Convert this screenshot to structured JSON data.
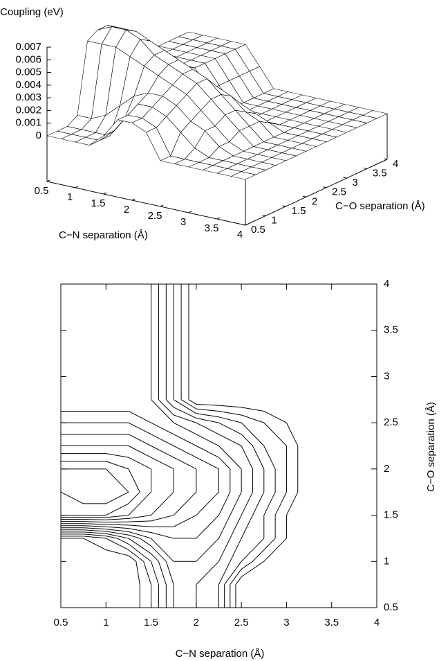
{
  "chart_data": [
    {
      "type": "surface",
      "zlabel": "Coupling (eV)",
      "xlabel": "C−N separation (Å)",
      "ylabel": "C−O separation (Å)",
      "x": [
        0.5,
        0.75,
        1,
        1.25,
        1.5,
        1.75,
        2,
        2.25,
        2.5,
        2.75,
        3,
        3.25,
        3.5,
        3.75,
        4
      ],
      "y": [
        0.5,
        0.75,
        1,
        1.25,
        1.5,
        1.75,
        2,
        2.25,
        2.5,
        2.75,
        3,
        3.25,
        3.5,
        3.75,
        4
      ],
      "z": [
        [
          0,
          0,
          0,
          0,
          0.001,
          0.0025,
          0.0025,
          0.002,
          0,
          0,
          0,
          0,
          0,
          0,
          0
        ],
        [
          0,
          0,
          0,
          0,
          0.001,
          0.0025,
          0.0025,
          0.002,
          0,
          0,
          0,
          0,
          0,
          0,
          0
        ],
        [
          0,
          0,
          0,
          0,
          0.0015,
          0.003,
          0.003,
          0.0025,
          0.0015,
          0.0005,
          0,
          0,
          0,
          0,
          0
        ],
        [
          0.0005,
          0.0005,
          0.001,
          0.002,
          0.003,
          0.0035,
          0.0035,
          0.003,
          0.002,
          0.0015,
          0.0005,
          0,
          0,
          0,
          0
        ],
        [
          0.006,
          0.006,
          0.006,
          0.0055,
          0.005,
          0.0045,
          0.004,
          0.0035,
          0.0025,
          0.0015,
          0.0005,
          0,
          0,
          0,
          0
        ],
        [
          0.0065,
          0.007,
          0.007,
          0.0065,
          0.0055,
          0.005,
          0.0045,
          0.004,
          0.003,
          0.002,
          0.001,
          0,
          0,
          0,
          0
        ],
        [
          0.0065,
          0.0065,
          0.0065,
          0.006,
          0.0055,
          0.005,
          0.0045,
          0.004,
          0.003,
          0.002,
          0.001,
          0,
          0,
          0,
          0
        ],
        [
          0.005,
          0.005,
          0.005,
          0.005,
          0.0045,
          0.004,
          0.0035,
          0.003,
          0.0025,
          0.0015,
          0.001,
          0,
          0,
          0,
          0
        ],
        [
          0.004,
          0.004,
          0.004,
          0.004,
          0.0035,
          0.003,
          0.0025,
          0.002,
          0.0015,
          0.001,
          0.0005,
          0,
          0,
          0,
          0
        ],
        [
          0.003,
          0.003,
          0.003,
          0.003,
          0.003,
          0.0015,
          0,
          0,
          0,
          0,
          0,
          0,
          0,
          0,
          0
        ],
        [
          0.003,
          0.003,
          0.003,
          0.003,
          0.003,
          0.0015,
          0,
          0,
          0,
          0,
          0,
          0,
          0,
          0,
          0
        ],
        [
          0.003,
          0.003,
          0.003,
          0.003,
          0.003,
          0.0015,
          0,
          0,
          0,
          0,
          0,
          0,
          0,
          0,
          0
        ],
        [
          0.003,
          0.003,
          0.003,
          0.003,
          0.003,
          0.0015,
          0,
          0,
          0,
          0,
          0,
          0,
          0,
          0,
          0
        ],
        [
          0.003,
          0.003,
          0.003,
          0.003,
          0.003,
          0.0015,
          0,
          0,
          0,
          0,
          0,
          0,
          0,
          0,
          0
        ],
        [
          0.003,
          0.003,
          0.003,
          0.003,
          0.003,
          0.0015,
          0,
          0,
          0,
          0,
          0,
          0,
          0,
          0,
          0
        ]
      ],
      "xlim": [
        0.5,
        4
      ],
      "ylim": [
        0.5,
        4
      ],
      "zlim": [
        0,
        0.007
      ],
      "xticks": [
        0.5,
        1,
        1.5,
        2,
        2.5,
        3,
        3.5,
        4
      ],
      "yticks": [
        0.5,
        1,
        1.5,
        2,
        2.5,
        3,
        3.5,
        4
      ],
      "zticks": [
        0,
        0.001,
        0.002,
        0.003,
        0.004,
        0.005,
        0.006,
        0.007
      ],
      "color": "#000000"
    },
    {
      "type": "contour",
      "xlabel": "C−N separation (Å)",
      "ylabel": "C−O separation (Å)",
      "levels": [
        0.0005,
        0.001,
        0.0015,
        0.002,
        0.0025,
        0.003,
        0.0035,
        0.004,
        0.0045,
        0.005,
        0.0055,
        0.006,
        0.0065
      ],
      "xlim": [
        0.5,
        4
      ],
      "ylim": [
        0.5,
        4
      ],
      "xticks": [
        0.5,
        1,
        1.5,
        2,
        2.5,
        3,
        3.5,
        4
      ],
      "yticks": [
        0.5,
        1,
        1.5,
        2,
        2.5,
        3,
        3.5,
        4
      ],
      "color": "#000000"
    }
  ]
}
